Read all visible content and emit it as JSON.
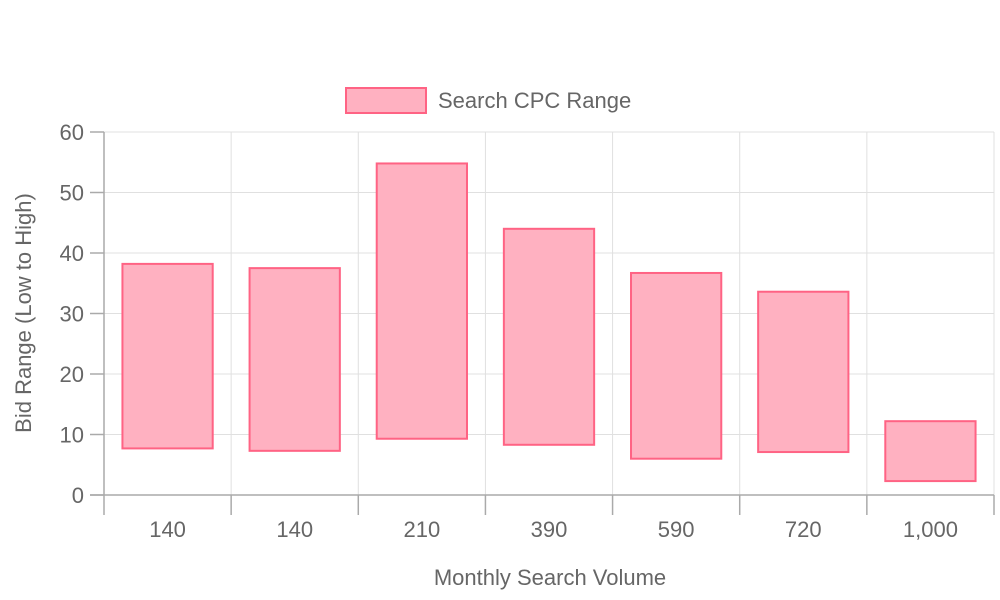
{
  "chart_data": {
    "type": "bar",
    "subtype": "floating-range",
    "categories": [
      "140",
      "140",
      "210",
      "390",
      "590",
      "720",
      "1,000"
    ],
    "series": [
      {
        "name": "Search CPC Range",
        "low": [
          7.7,
          7.3,
          9.3,
          8.3,
          6.0,
          7.1,
          2.3
        ],
        "high": [
          38.2,
          37.5,
          54.8,
          44.0,
          36.7,
          33.6,
          12.2
        ],
        "fill_color": "#ffb1c1",
        "border_color": "#ff6384"
      }
    ],
    "xlabel": "Monthly Search Volume",
    "ylabel": "Bid Range (Low to High)",
    "ylim": [
      0,
      60
    ],
    "yticks": [
      0,
      10,
      20,
      30,
      40,
      50,
      60
    ],
    "grid": true,
    "legend": {
      "position": "top-center",
      "label": "Search CPC Range"
    }
  }
}
